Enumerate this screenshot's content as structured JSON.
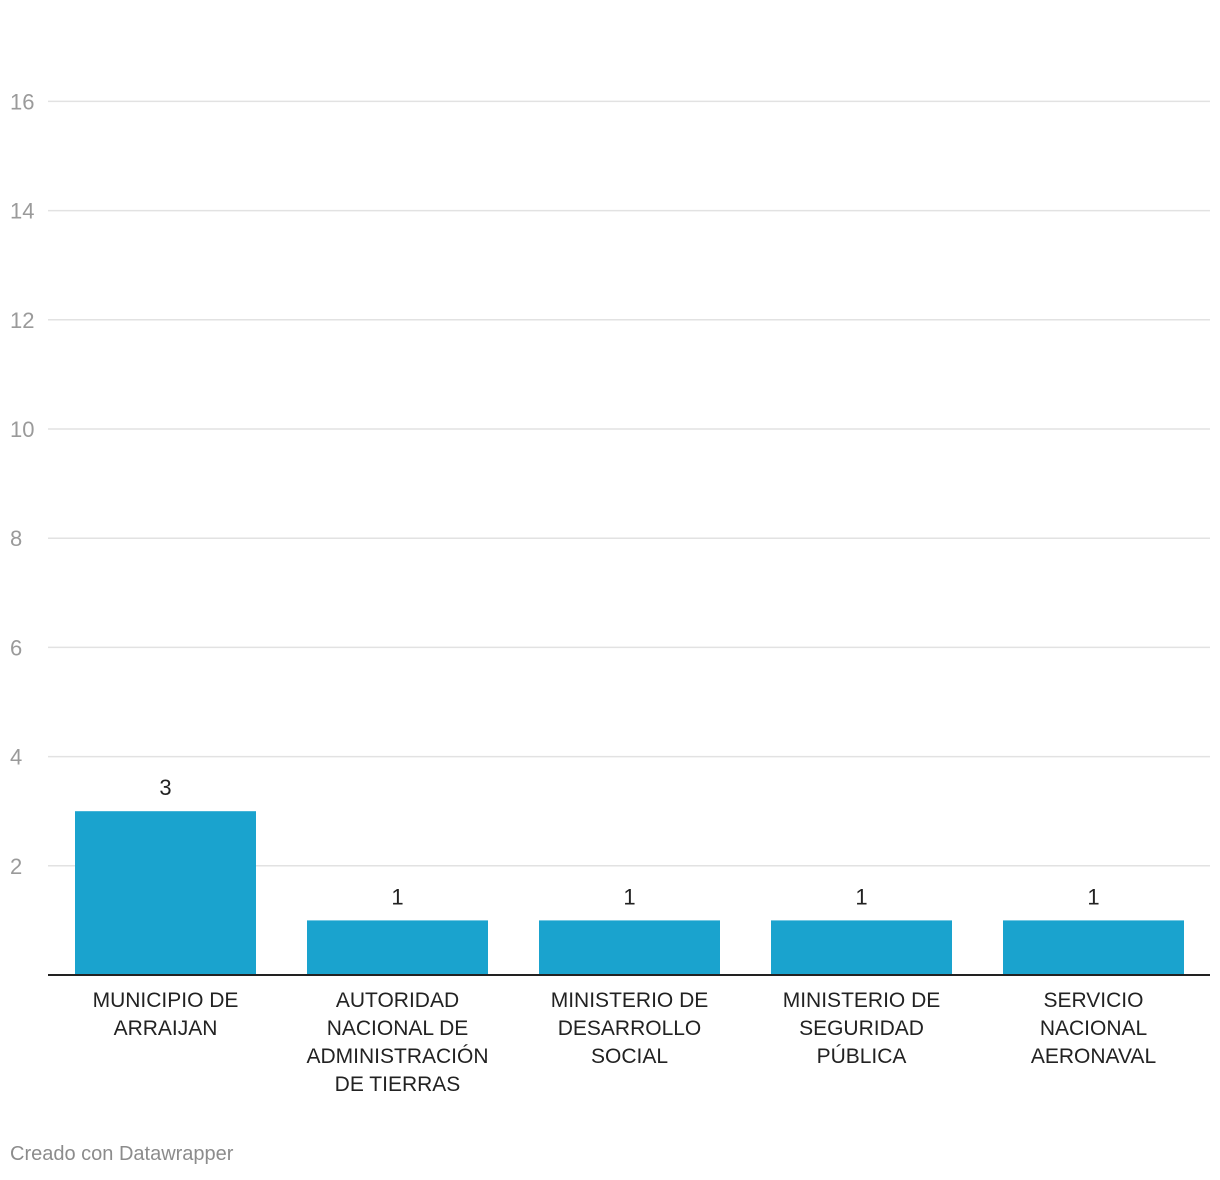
{
  "chart_data": {
    "type": "bar",
    "categories": [
      [
        "MUNICIPIO DE",
        "ARRAIJAN"
      ],
      [
        "AUTORIDAD",
        "NACIONAL DE",
        "ADMINISTRACIÓN",
        "DE TIERRAS"
      ],
      [
        "MINISTERIO DE",
        "DESARROLLO",
        "SOCIAL"
      ],
      [
        "MINISTERIO DE",
        "SEGURIDAD",
        "PÚBLICA"
      ],
      [
        "SERVICIO",
        "NACIONAL",
        "AERONAVAL"
      ]
    ],
    "values": [
      3,
      1,
      1,
      1,
      1
    ],
    "ylim": [
      0,
      16
    ],
    "yticks": [
      2,
      4,
      6,
      8,
      10,
      12,
      14,
      16
    ],
    "grid": true,
    "bar_color": "#1aa3ce"
  },
  "footer": {
    "credit": "Creado con Datawrapper"
  }
}
